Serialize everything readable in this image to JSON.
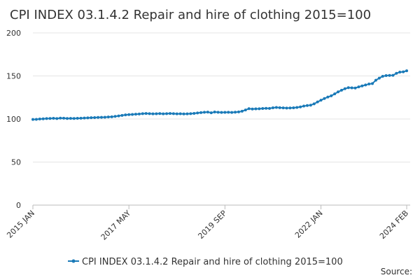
{
  "chart_data": {
    "type": "line",
    "title": "CPI INDEX 03.1.4.2 Repair and hire of clothing 2015=100",
    "source": "Source:",
    "categories": [
      "2015 JAN",
      null,
      null,
      null,
      null,
      null,
      null,
      null,
      null,
      null,
      null,
      null,
      null,
      null,
      null,
      null,
      null,
      null,
      null,
      null,
      null,
      null,
      null,
      null,
      null,
      null,
      null,
      null,
      "2017 MAY",
      null,
      null,
      null,
      null,
      null,
      null,
      null,
      null,
      null,
      null,
      null,
      null,
      null,
      null,
      null,
      null,
      null,
      null,
      null,
      null,
      null,
      null,
      null,
      null,
      null,
      null,
      null,
      "2019 SEP",
      null,
      null,
      null,
      null,
      null,
      null,
      null,
      null,
      null,
      null,
      null,
      null,
      null,
      null,
      null,
      null,
      null,
      null,
      null,
      null,
      null,
      null,
      null,
      null,
      null,
      null,
      null,
      "2022 JAN",
      null,
      null,
      null,
      null,
      null,
      null,
      null,
      null,
      null,
      null,
      null,
      null,
      null,
      null,
      null,
      null,
      null,
      null,
      null,
      null,
      null,
      null,
      null,
      null,
      "2024 FEB"
    ],
    "series": [
      {
        "name": "CPI INDEX 03.1.4.2 Repair and hire of clothing 2015=100",
        "color": "#1a7ab8",
        "values": [
          99.5,
          99.6,
          100.0,
          100.2,
          100.5,
          100.6,
          100.8,
          100.5,
          101.0,
          100.9,
          100.6,
          100.7,
          100.6,
          100.8,
          100.9,
          101.1,
          101.3,
          101.5,
          101.6,
          101.8,
          101.9,
          102.0,
          102.3,
          102.5,
          103.0,
          103.6,
          104.2,
          104.8,
          105.1,
          105.3,
          105.6,
          105.8,
          106.2,
          106.4,
          106.2,
          106.0,
          106.1,
          106.3,
          106.0,
          106.2,
          106.4,
          106.2,
          106.0,
          106.1,
          105.9,
          106.0,
          106.2,
          106.5,
          107.0,
          107.4,
          107.8,
          108.0,
          107.2,
          108.1,
          107.8,
          107.6,
          107.7,
          107.8,
          107.6,
          107.9,
          108.2,
          109.0,
          110.5,
          112.0,
          111.6,
          111.8,
          111.9,
          112.2,
          112.4,
          112.3,
          113.0,
          113.4,
          113.1,
          112.9,
          112.7,
          112.8,
          113.0,
          113.4,
          114.0,
          115.0,
          115.6,
          116.1,
          117.6,
          119.8,
          121.8,
          123.8,
          125.5,
          126.9,
          129.2,
          131.5,
          133.4,
          135.2,
          136.4,
          136.2,
          136.0,
          137.3,
          138.4,
          139.5,
          140.6,
          141.2,
          145.0,
          147.5,
          149.6,
          150.4,
          150.6,
          150.7,
          153.0,
          154.5,
          154.8,
          156.0
        ]
      }
    ],
    "ylim": [
      0,
      200
    ],
    "yticks": [
      0,
      50,
      100,
      150,
      200
    ],
    "grid": true
  }
}
